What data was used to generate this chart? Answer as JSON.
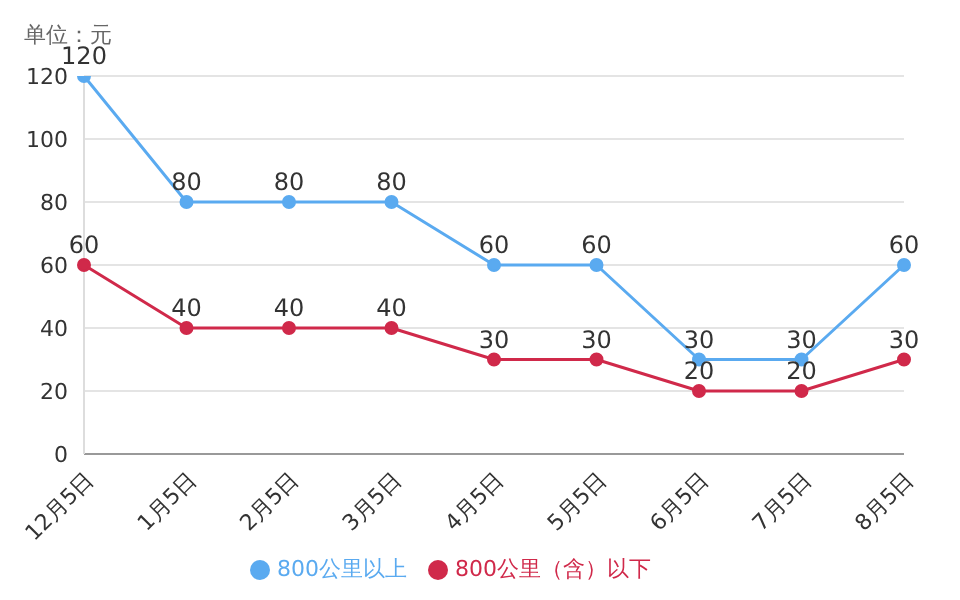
{
  "chart_data": {
    "type": "line",
    "annotations": [
      "单位：元"
    ],
    "categories": [
      "12月5日",
      "1月5日",
      "2月5日",
      "3月5日",
      "4月5日",
      "5月5日",
      "6月5日",
      "7月5日",
      "8月5日"
    ],
    "series": [
      {
        "name": "800公里以上",
        "color": "#5aaaf0",
        "values": [
          120,
          80,
          80,
          80,
          60,
          60,
          30,
          30,
          60
        ]
      },
      {
        "name": "800公里（含）以下",
        "color": "#d0294a",
        "values": [
          60,
          40,
          40,
          40,
          30,
          30,
          20,
          20,
          30
        ]
      }
    ],
    "ylim": [
      0,
      120
    ],
    "yticks": [
      0,
      20,
      40,
      60,
      80,
      100,
      120
    ],
    "grid": "y",
    "legend": "bottom",
    "marker": "circle",
    "data_labels": true
  }
}
